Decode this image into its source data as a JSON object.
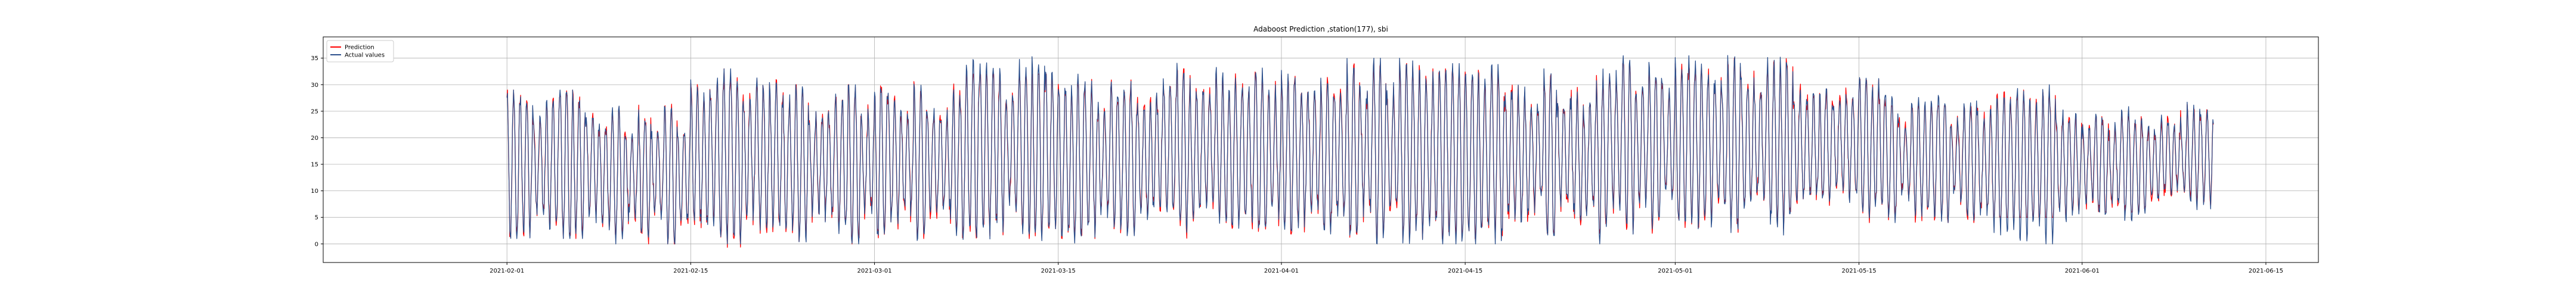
{
  "chart_data": {
    "type": "line",
    "title": "Adaboost Prediction ,station(177), sbi",
    "xlabel": "",
    "ylabel": "",
    "xlim": [
      "2021-01-18",
      "2021-06-19"
    ],
    "ylim": [
      -3.5,
      39
    ],
    "grid": true,
    "legend": {
      "position": "top-left",
      "entries": [
        "Prediction",
        "Actual values"
      ]
    },
    "x_ticks": [
      "2021-02-01",
      "2021-02-15",
      "2021-03-01",
      "2021-03-15",
      "2021-04-01",
      "2021-04-15",
      "2021-05-01",
      "2021-05-15",
      "2021-06-01",
      "2021-06-15"
    ],
    "y_ticks": [
      0,
      5,
      10,
      15,
      20,
      25,
      30,
      35
    ],
    "x_start": "2021-02-01",
    "x_end": "2021-06-11",
    "sampling": "hourly",
    "series": [
      {
        "name": "Prediction",
        "color": "#ff0000",
        "envelope_by_week": [
          {
            "week_start": "2021-02-01",
            "min": 1,
            "max": 29
          },
          {
            "week_start": "2021-02-08",
            "min": 0,
            "max": 27
          },
          {
            "week_start": "2021-02-15",
            "min": -2,
            "max": 33
          },
          {
            "week_start": "2021-02-22",
            "min": 0,
            "max": 30
          },
          {
            "week_start": "2021-03-01",
            "min": 1,
            "max": 31
          },
          {
            "week_start": "2021-03-08",
            "min": 1,
            "max": 32
          },
          {
            "week_start": "2021-03-15",
            "min": 1,
            "max": 31
          },
          {
            "week_start": "2021-03-22",
            "min": 1,
            "max": 33
          },
          {
            "week_start": "2021-03-29",
            "min": 1,
            "max": 33
          },
          {
            "week_start": "2021-04-05",
            "min": 1,
            "max": 34
          },
          {
            "week_start": "2021-04-12",
            "min": 1,
            "max": 33
          },
          {
            "week_start": "2021-04-19",
            "min": 2,
            "max": 32
          },
          {
            "week_start": "2021-04-26",
            "min": 2,
            "max": 34
          },
          {
            "week_start": "2021-05-03",
            "min": 2,
            "max": 35
          },
          {
            "week_start": "2021-05-10",
            "min": 4,
            "max": 31
          },
          {
            "week_start": "2021-05-17",
            "min": 4,
            "max": 26
          },
          {
            "week_start": "2021-05-24",
            "min": 5,
            "max": 29
          },
          {
            "week_start": "2021-05-31",
            "min": 6,
            "max": 24
          },
          {
            "week_start": "2021-06-07",
            "min": 7,
            "max": 27
          }
        ]
      },
      {
        "name": "Actual values",
        "color": "#2b4f8c",
        "envelope_by_week": [
          {
            "week_start": "2021-02-01",
            "min": 1,
            "max": 29
          },
          {
            "week_start": "2021-02-08",
            "min": 0,
            "max": 26
          },
          {
            "week_start": "2021-02-15",
            "min": 0,
            "max": 33
          },
          {
            "week_start": "2021-02-22",
            "min": 0,
            "max": 30
          },
          {
            "week_start": "2021-03-01",
            "min": 0,
            "max": 31
          },
          {
            "week_start": "2021-03-08",
            "min": 0,
            "max": 36
          },
          {
            "week_start": "2021-03-15",
            "min": 0,
            "max": 32
          },
          {
            "week_start": "2021-03-22",
            "min": 0,
            "max": 35
          },
          {
            "week_start": "2021-03-29",
            "min": 0,
            "max": 34
          },
          {
            "week_start": "2021-04-05",
            "min": 0,
            "max": 35
          },
          {
            "week_start": "2021-04-12",
            "min": 0,
            "max": 34
          },
          {
            "week_start": "2021-04-19",
            "min": 0,
            "max": 33
          },
          {
            "week_start": "2021-04-26",
            "min": 1,
            "max": 37
          },
          {
            "week_start": "2021-05-03",
            "min": 1,
            "max": 37
          },
          {
            "week_start": "2021-05-10",
            "min": 4,
            "max": 33
          },
          {
            "week_start": "2021-05-17",
            "min": 4,
            "max": 28
          },
          {
            "week_start": "2021-05-24",
            "min": 0,
            "max": 30
          },
          {
            "week_start": "2021-05-31",
            "min": 4,
            "max": 26
          },
          {
            "week_start": "2021-06-07",
            "min": 6,
            "max": 27
          }
        ]
      }
    ]
  }
}
